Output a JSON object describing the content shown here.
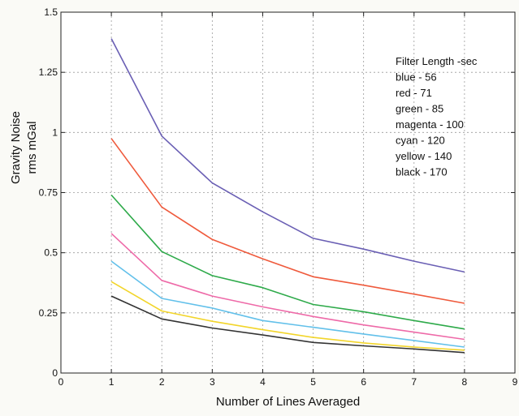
{
  "chart_data": {
    "type": "line",
    "title": "",
    "xlabel": "Number of Lines Averaged",
    "ylabel": [
      "Gravity Noise",
      "rms  mGal"
    ],
    "xlim": [
      0,
      9
    ],
    "ylim": [
      0,
      1.5
    ],
    "x_ticks": [
      "0",
      "1",
      "2",
      "3",
      "4",
      "5",
      "6",
      "7",
      "8",
      "9"
    ],
    "y_ticks": [
      "0",
      "0.25",
      "0.5",
      "0.75",
      "1",
      "1.25",
      "1.5"
    ],
    "grid": true,
    "x": [
      1,
      2,
      3,
      4,
      5,
      6,
      7,
      8
    ],
    "series": [
      {
        "color": "#6a5fb4",
        "values": [
          1.39,
          0.985,
          0.79,
          0.67,
          0.56,
          0.515,
          0.465,
          0.42
        ]
      },
      {
        "color": "#ef5a3c",
        "values": [
          0.975,
          0.69,
          0.555,
          0.475,
          0.4,
          0.365,
          0.328,
          0.29
        ]
      },
      {
        "color": "#2eaa4a",
        "values": [
          0.74,
          0.505,
          0.405,
          0.355,
          0.285,
          0.255,
          0.218,
          0.183
        ]
      },
      {
        "color": "#ee6aa8",
        "values": [
          0.58,
          0.385,
          0.32,
          0.275,
          0.235,
          0.2,
          0.17,
          0.14
        ]
      },
      {
        "color": "#62c0ea",
        "values": [
          0.465,
          0.31,
          0.27,
          0.218,
          0.19,
          0.162,
          0.135,
          0.108
        ]
      },
      {
        "color": "#f2d52a",
        "values": [
          0.38,
          0.258,
          0.215,
          0.18,
          0.148,
          0.125,
          0.108,
          0.095
        ]
      },
      {
        "color": "#333333",
        "values": [
          0.32,
          0.225,
          0.187,
          0.158,
          0.127,
          0.113,
          0.1,
          0.085
        ]
      }
    ],
    "legend": {
      "position": "top-right",
      "lines": [
        "Filter Length -sec",
        "blue - 56",
        "red - 71",
        "green - 85",
        "magenta - 100",
        "cyan - 120",
        "yellow - 140",
        "black - 170"
      ]
    }
  }
}
